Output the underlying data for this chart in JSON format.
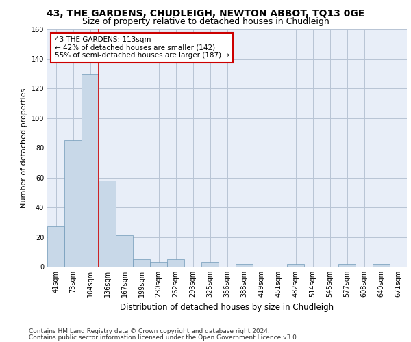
{
  "title": "43, THE GARDENS, CHUDLEIGH, NEWTON ABBOT, TQ13 0GE",
  "subtitle": "Size of property relative to detached houses in Chudleigh",
  "xlabel": "Distribution of detached houses by size in Chudleigh",
  "ylabel": "Number of detached properties",
  "bar_color": "#c8d8e8",
  "bar_edge_color": "#7099b8",
  "categories": [
    "41sqm",
    "73sqm",
    "104sqm",
    "136sqm",
    "167sqm",
    "199sqm",
    "230sqm",
    "262sqm",
    "293sqm",
    "325sqm",
    "356sqm",
    "388sqm",
    "419sqm",
    "451sqm",
    "482sqm",
    "514sqm",
    "545sqm",
    "577sqm",
    "608sqm",
    "640sqm",
    "671sqm"
  ],
  "values": [
    27,
    85,
    130,
    58,
    21,
    5,
    3,
    5,
    0,
    3,
    0,
    2,
    0,
    0,
    2,
    0,
    0,
    2,
    0,
    2,
    0
  ],
  "ylim": [
    0,
    160
  ],
  "yticks": [
    0,
    20,
    40,
    60,
    80,
    100,
    120,
    140,
    160
  ],
  "property_line_x": 2.5,
  "annotation_text": "43 THE GARDENS: 113sqm\n← 42% of detached houses are smaller (142)\n55% of semi-detached houses are larger (187) →",
  "annotation_box_color": "#ffffff",
  "annotation_box_edge_color": "#cc0000",
  "annotation_text_color": "#000000",
  "property_line_color": "#cc0000",
  "grid_color": "#b8c4d4",
  "background_color": "#e8eef8",
  "footer_line1": "Contains HM Land Registry data © Crown copyright and database right 2024.",
  "footer_line2": "Contains public sector information licensed under the Open Government Licence v3.0.",
  "title_fontsize": 10,
  "subtitle_fontsize": 9,
  "annotation_fontsize": 7.5,
  "ylabel_fontsize": 8,
  "xlabel_fontsize": 8.5,
  "tick_fontsize": 7,
  "footer_fontsize": 6.5
}
